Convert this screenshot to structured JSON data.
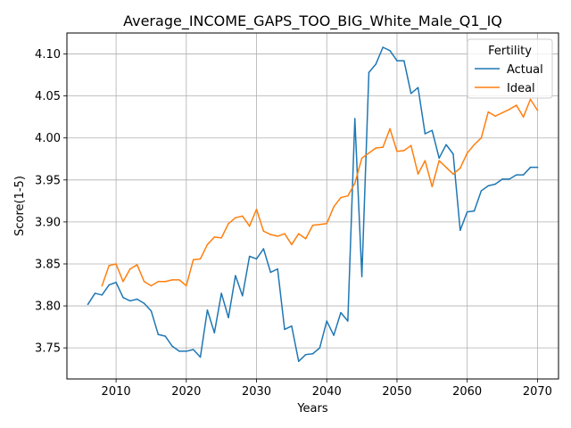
{
  "chart_data": {
    "type": "line",
    "title": "Average_INCOME_GAPS_TOO_BIG_White_Male_Q1_IQ",
    "xlabel": "Years",
    "ylabel": "Score(1-5)",
    "xlim": [
      2003,
      2073
    ],
    "ylim": [
      3.713,
      4.125
    ],
    "xticks": [
      2010,
      2020,
      2030,
      2040,
      2050,
      2060,
      2070
    ],
    "yticks": [
      3.75,
      3.8,
      3.85,
      3.9,
      3.95,
      4.0,
      4.05,
      4.1
    ],
    "ytick_labels": [
      "3.75",
      "3.80",
      "3.85",
      "3.90",
      "3.95",
      "4.00",
      "4.05",
      "4.10"
    ],
    "grid": true,
    "legend": {
      "title": "Fertility",
      "placement": "upper right"
    },
    "series": [
      {
        "name": "Actual",
        "color": "#1f77b4",
        "x": [
          2006,
          2007,
          2008,
          2009,
          2010,
          2011,
          2012,
          2013,
          2014,
          2015,
          2016,
          2017,
          2018,
          2019,
          2020,
          2021,
          2022,
          2023,
          2024,
          2025,
          2026,
          2027,
          2028,
          2029,
          2030,
          2031,
          2032,
          2033,
          2034,
          2035,
          2036,
          2037,
          2038,
          2039,
          2040,
          2041,
          2042,
          2043,
          2044,
          2045,
          2046,
          2047,
          2048,
          2049,
          2050,
          2051,
          2052,
          2053,
          2054,
          2055,
          2056,
          2057,
          2058,
          2059,
          2060,
          2061,
          2062,
          2063,
          2064,
          2065,
          2066,
          2067,
          2068,
          2069,
          2070
        ],
        "y": [
          3.802,
          3.815,
          3.813,
          3.825,
          3.828,
          3.81,
          3.806,
          3.808,
          3.803,
          3.794,
          3.766,
          3.764,
          3.752,
          3.746,
          3.746,
          3.748,
          3.739,
          3.795,
          3.768,
          3.815,
          3.786,
          3.836,
          3.812,
          3.859,
          3.856,
          3.868,
          3.84,
          3.844,
          3.772,
          3.776,
          3.734,
          3.742,
          3.743,
          3.75,
          3.782,
          3.765,
          3.792,
          3.782,
          4.023,
          3.835,
          4.078,
          4.088,
          4.108,
          4.104,
          4.092,
          4.092,
          4.053,
          4.06,
          4.005,
          4.009,
          3.976,
          3.992,
          3.981,
          3.89,
          3.912,
          3.913,
          3.937,
          3.943,
          3.945,
          3.951,
          3.951,
          3.956,
          3.956,
          3.965,
          3.965
        ]
      },
      {
        "name": "Ideal",
        "color": "#ff7f0e",
        "x": [
          2008,
          2009,
          2010,
          2011,
          2012,
          2013,
          2014,
          2015,
          2016,
          2017,
          2018,
          2019,
          2020,
          2021,
          2022,
          2023,
          2024,
          2025,
          2026,
          2027,
          2028,
          2029,
          2030,
          2031,
          2032,
          2033,
          2034,
          2035,
          2036,
          2037,
          2038,
          2039,
          2040,
          2041,
          2042,
          2043,
          2044,
          2045,
          2046,
          2047,
          2048,
          2049,
          2050,
          2051,
          2052,
          2053,
          2054,
          2055,
          2056,
          2057,
          2058,
          2059,
          2060,
          2061,
          2062,
          2063,
          2064,
          2065,
          2066,
          2067,
          2068,
          2069,
          2070
        ],
        "y": [
          3.824,
          3.848,
          3.85,
          3.829,
          3.844,
          3.849,
          3.829,
          3.824,
          3.829,
          3.829,
          3.831,
          3.831,
          3.824,
          3.855,
          3.856,
          3.873,
          3.882,
          3.881,
          3.898,
          3.905,
          3.907,
          3.895,
          3.915,
          3.889,
          3.885,
          3.883,
          3.886,
          3.873,
          3.886,
          3.88,
          3.896,
          3.897,
          3.898,
          3.918,
          3.929,
          3.931,
          3.946,
          3.976,
          3.982,
          3.988,
          3.989,
          4.011,
          3.984,
          3.985,
          3.991,
          3.957,
          3.973,
          3.942,
          3.973,
          3.965,
          3.957,
          3.964,
          3.982,
          3.992,
          4.0,
          4.031,
          4.026,
          4.03,
          4.034,
          4.039,
          4.025,
          4.046,
          4.033
        ]
      }
    ]
  }
}
